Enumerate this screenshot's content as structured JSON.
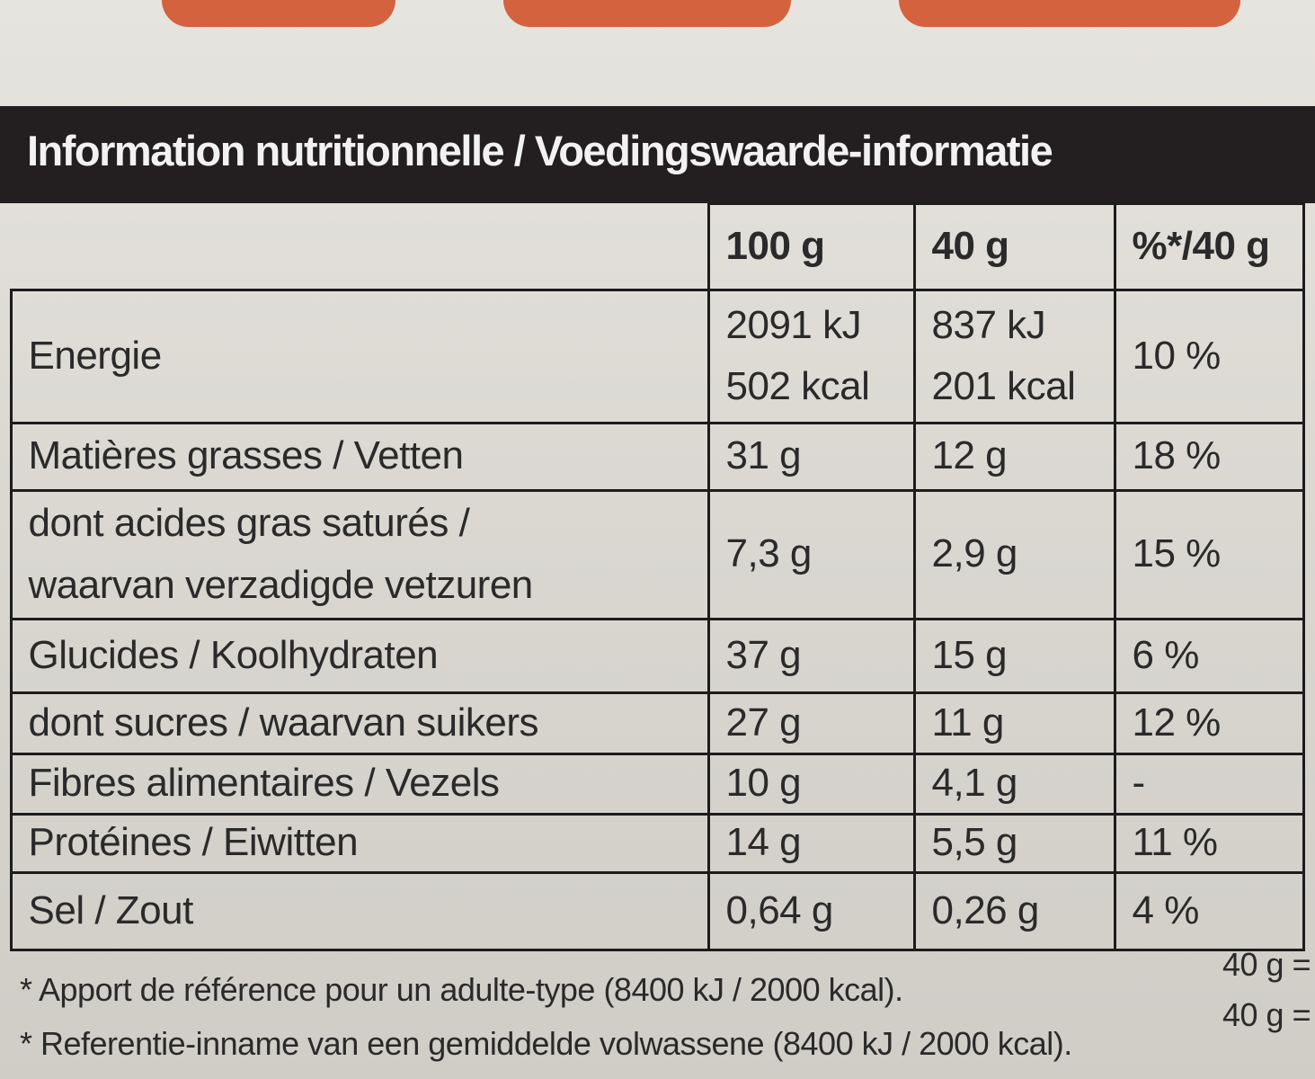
{
  "header": {
    "title": "Information nutritionnelle / Voedingswaarde-informatie"
  },
  "table": {
    "columns": [
      "100 g",
      "40 g",
      "%*/40 g"
    ],
    "rows": [
      {
        "label": [
          "Energie"
        ],
        "cells": [
          [
            "2091 kJ",
            "502 kcal"
          ],
          [
            "837 kJ",
            "201 kcal"
          ],
          [
            "10 %"
          ]
        ]
      },
      {
        "label": [
          "Matières grasses / Vetten"
        ],
        "cells": [
          [
            "31 g"
          ],
          [
            "12 g"
          ],
          [
            "18 %"
          ]
        ]
      },
      {
        "label": [
          "dont acides gras saturés /",
          "waarvan verzadigde vetzuren"
        ],
        "cells": [
          [
            "7,3 g"
          ],
          [
            "2,9 g"
          ],
          [
            "15 %"
          ]
        ]
      },
      {
        "label": [
          "Glucides / Koolhydraten"
        ],
        "cells": [
          [
            "37 g"
          ],
          [
            "15 g"
          ],
          [
            "6 %"
          ]
        ]
      },
      {
        "label": [
          "dont sucres / waarvan suikers"
        ],
        "cells": [
          [
            "27 g"
          ],
          [
            "11 g"
          ],
          [
            "12 %"
          ]
        ]
      },
      {
        "label": [
          "Fibres alimentaires / Vezels"
        ],
        "cells": [
          [
            "10 g"
          ],
          [
            "4,1 g"
          ],
          [
            "-"
          ]
        ]
      },
      {
        "label": [
          "Protéines / Eiwitten"
        ],
        "cells": [
          [
            "14 g"
          ],
          [
            "5,5 g"
          ],
          [
            "11 %"
          ]
        ]
      },
      {
        "label": [
          "Sel / Zout"
        ],
        "cells": [
          [
            "0,64 g"
          ],
          [
            "0,26 g"
          ],
          [
            "4 %"
          ]
        ]
      }
    ]
  },
  "footnotes": [
    {
      "text": "* Apport de référence pour un adulte-type (8400 kJ / 2000 kcal).",
      "portion": "40 g ="
    },
    {
      "text": "* Referentie-inname van een gemiddelde volwassene (8400 kJ / 2000 kcal).",
      "portion": "40 g ="
    }
  ]
}
